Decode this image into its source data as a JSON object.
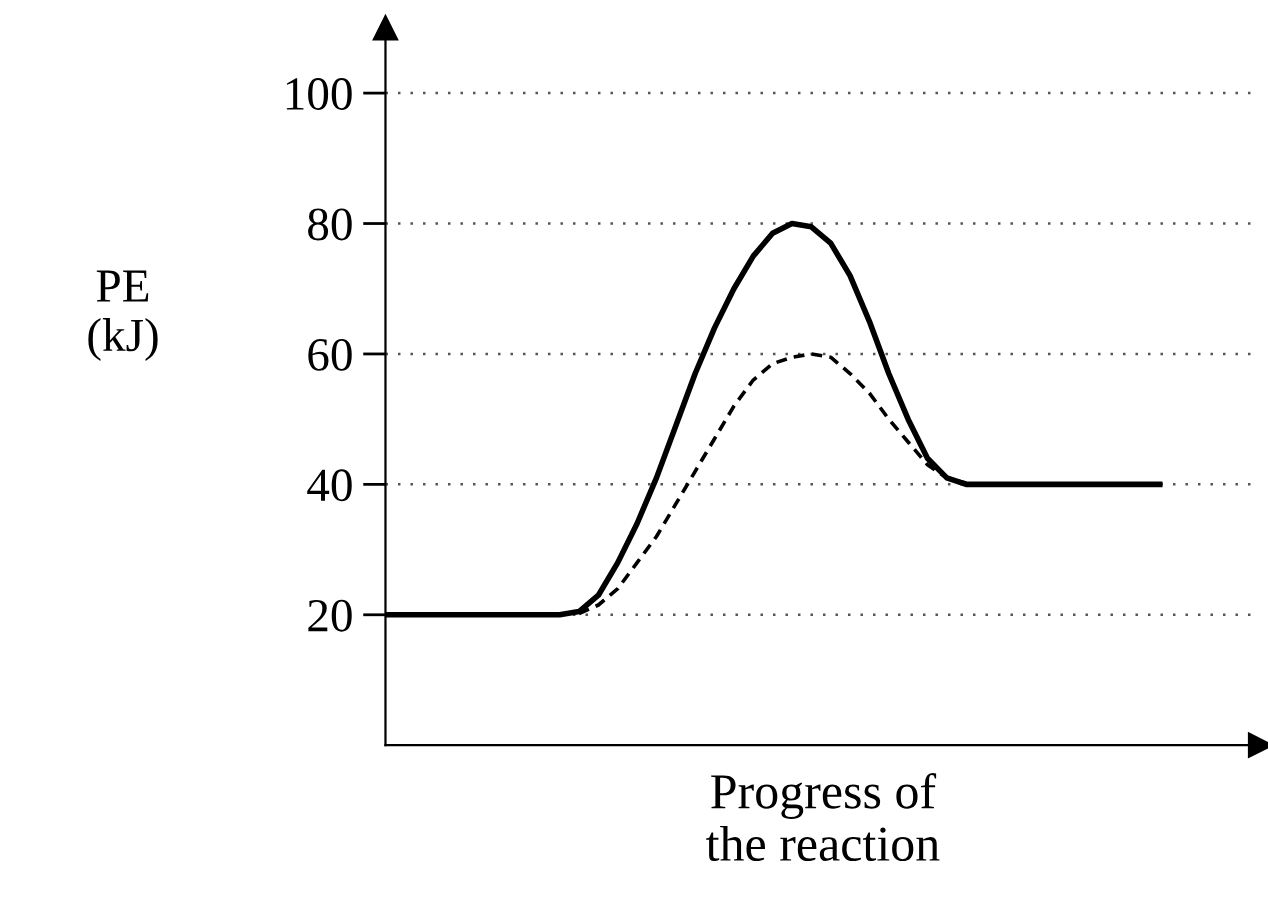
{
  "chart_data": {
    "type": "line",
    "xlabel": "Progress of\nthe reaction",
    "ylabel": "PE\n(kJ)",
    "categories": [
      null,
      null,
      null,
      null,
      null,
      null,
      null,
      null,
      null,
      null,
      null,
      null,
      null,
      null,
      null,
      null,
      null,
      null,
      null,
      null,
      null,
      null,
      null,
      null,
      null,
      null,
      null,
      null,
      null,
      null,
      null,
      null,
      null,
      null,
      null,
      null,
      null,
      null,
      null,
      null,
      null
    ],
    "series": [
      {
        "color": "#000000",
        "line_style": "solid",
        "values": [
          20,
          20,
          20,
          20,
          20,
          20,
          20,
          20,
          20,
          20,
          20.5,
          23,
          28,
          34,
          41,
          49,
          57,
          64,
          70,
          75,
          78.5,
          80,
          79.5,
          77,
          72,
          65,
          57,
          50,
          44,
          41,
          40,
          40,
          40,
          40,
          40,
          40,
          40,
          40,
          40,
          40,
          40
        ]
      },
      {
        "color": "#000000",
        "line_style": "dashed",
        "values": [
          null,
          null,
          null,
          null,
          null,
          null,
          null,
          null,
          null,
          null,
          20.2,
          21.5,
          24,
          28,
          32,
          37,
          42,
          47,
          52,
          56,
          58.5,
          59.5,
          60,
          59.5,
          57,
          54,
          50,
          46.5,
          43,
          41,
          40.2,
          null,
          null,
          null,
          null,
          null,
          null,
          null,
          null,
          null,
          null
        ]
      }
    ],
    "ylim": [
      0,
      110
    ],
    "yticks": [
      20,
      40,
      60,
      80,
      100
    ],
    "grid": "y",
    "tick_labels": "y",
    "marker": "none"
  }
}
